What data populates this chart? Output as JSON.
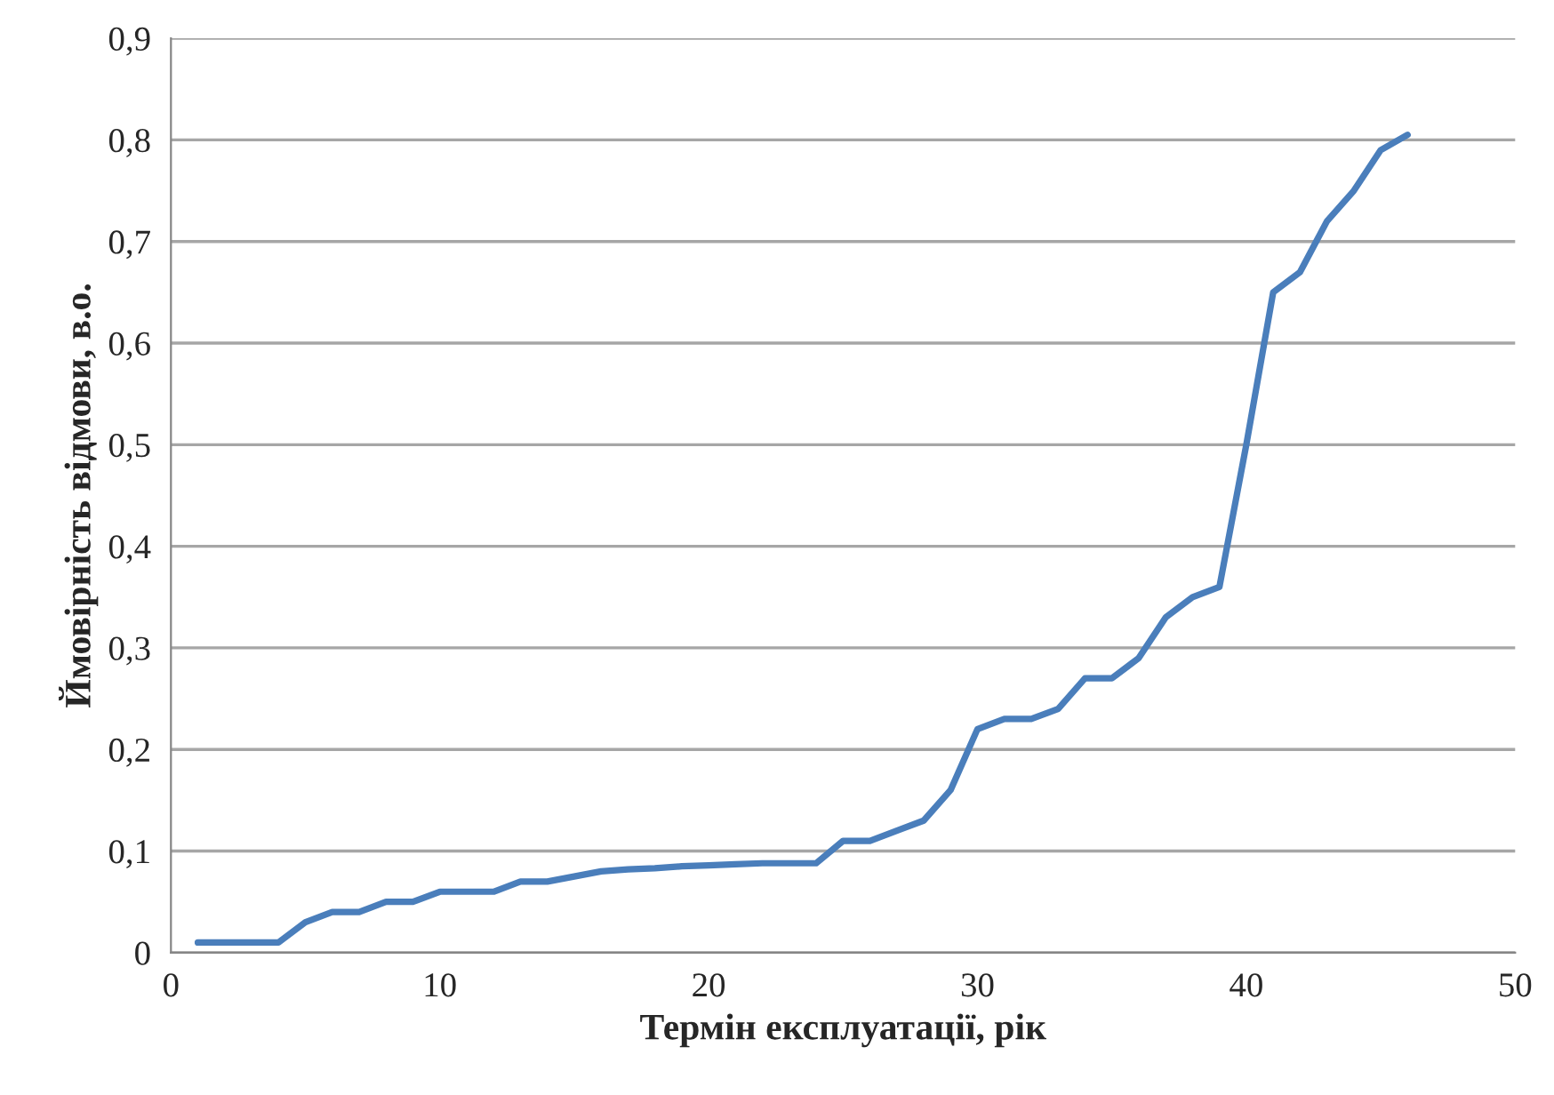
{
  "chart_data": {
    "type": "line",
    "xlabel": "Термін експлуатації, рік",
    "ylabel": "Ймовірність відмови, в.о.",
    "x": [
      1,
      2,
      3,
      4,
      5,
      6,
      7,
      8,
      9,
      10,
      11,
      12,
      13,
      14,
      15,
      16,
      17,
      18,
      19,
      20,
      21,
      22,
      23,
      24,
      25,
      26,
      27,
      28,
      29,
      30,
      31,
      32,
      33,
      34,
      35,
      36,
      37,
      38,
      39,
      40,
      41,
      42,
      43,
      44,
      45,
      46
    ],
    "series": [
      {
        "color": "#4a7ebb",
        "values": [
          0.01,
          0.01,
          0.01,
          0.01,
          0.03,
          0.04,
          0.04,
          0.05,
          0.05,
          0.06,
          0.06,
          0.06,
          0.07,
          0.07,
          0.075,
          0.08,
          0.082,
          0.083,
          0.085,
          0.086,
          0.087,
          0.088,
          0.088,
          0.088,
          0.11,
          0.11,
          0.12,
          0.13,
          0.16,
          0.22,
          0.23,
          0.23,
          0.24,
          0.27,
          0.27,
          0.29,
          0.33,
          0.35,
          0.36,
          0.5,
          0.65,
          0.67,
          0.72,
          0.75,
          0.79,
          0.805
        ]
      }
    ],
    "xlim": [
      0,
      50
    ],
    "xticks": [
      0,
      10,
      20,
      30,
      40,
      50
    ],
    "ylim": [
      0,
      0.9
    ],
    "yticks": [
      {
        "value": 0,
        "label": "0"
      },
      {
        "value": 0.1,
        "label": "0,1"
      },
      {
        "value": 0.2,
        "label": "0,2"
      },
      {
        "value": 0.3,
        "label": "0,3"
      },
      {
        "value": 0.4,
        "label": "0,4"
      },
      {
        "value": 0.5,
        "label": "0,5"
      },
      {
        "value": 0.6,
        "label": "0,6"
      },
      {
        "value": 0.7,
        "label": "0,7"
      },
      {
        "value": 0.8,
        "label": "0,8"
      },
      {
        "value": 0.9,
        "label": "0,9"
      }
    ],
    "grid": "y",
    "legend": false,
    "marker": "none",
    "line_style": "solid"
  }
}
